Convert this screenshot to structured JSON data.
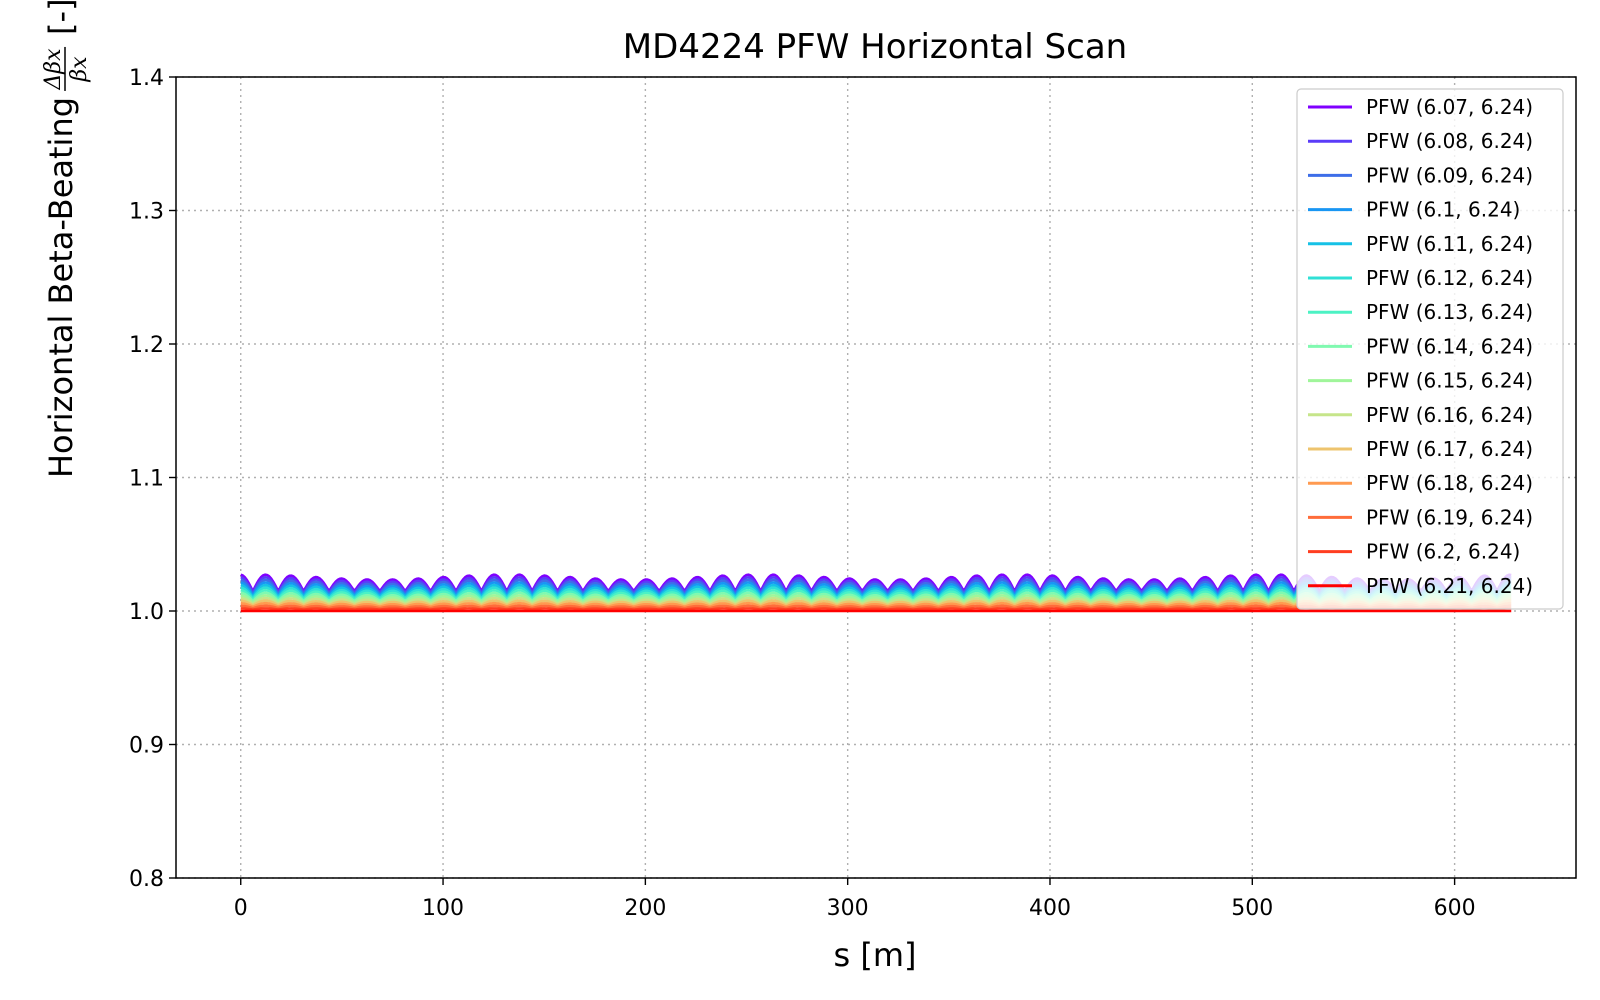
{
  "chart_data": {
    "type": "line",
    "title": "MD4224 PFW Horizontal Scan",
    "xlabel": "s [m]",
    "ylabel": "Horizontal Beta-Beating",
    "ylabel_fraction": {
      "numerator": "Δβx",
      "denominator": "βx"
    },
    "ylabel_unit": "[-]",
    "xlim": [
      -32,
      660
    ],
    "ylim": [
      0.8,
      1.4
    ],
    "xticks": [
      0,
      100,
      200,
      300,
      400,
      500,
      600
    ],
    "xtick_labels": [
      "0",
      "100",
      "200",
      "300",
      "400",
      "500",
      "600"
    ],
    "yticks": [
      0.8,
      0.9,
      1.0,
      1.1,
      1.2,
      1.3,
      1.4
    ],
    "ytick_labels": [
      "0.8",
      "0.9",
      "1.0",
      "1.1",
      "1.2",
      "1.3",
      "1.4"
    ],
    "grid": true,
    "legend_position": "top-right",
    "x_range": [
      0,
      628
    ],
    "series": [
      {
        "name": "PFW (6.07, 6.24)",
        "color": "#8000ff",
        "amplitude": 0.014,
        "offset": 0.021
      },
      {
        "name": "PFW (6.08, 6.24)",
        "color": "#5a3cf8",
        "amplitude": 0.013,
        "offset": 0.0195
      },
      {
        "name": "PFW (6.09, 6.24)",
        "color": "#3e6ee8",
        "amplitude": 0.012,
        "offset": 0.018
      },
      {
        "name": "PFW (6.1, 6.24)",
        "color": "#1996f3",
        "amplitude": 0.011,
        "offset": 0.0165
      },
      {
        "name": "PFW (6.11, 6.24)",
        "color": "#16c1e6",
        "amplitude": 0.01,
        "offset": 0.015
      },
      {
        "name": "PFW (6.12, 6.24)",
        "color": "#30e0d6",
        "amplitude": 0.009,
        "offset": 0.0135
      },
      {
        "name": "PFW (6.13, 6.24)",
        "color": "#4cf2c4",
        "amplitude": 0.008,
        "offset": 0.012
      },
      {
        "name": "PFW (6.14, 6.24)",
        "color": "#80f9b0",
        "amplitude": 0.007,
        "offset": 0.0105
      },
      {
        "name": "PFW (6.15, 6.24)",
        "color": "#a0f59a",
        "amplitude": 0.006,
        "offset": 0.009
      },
      {
        "name": "PFW (6.16, 6.24)",
        "color": "#c6e58a",
        "amplitude": 0.005,
        "offset": 0.0075
      },
      {
        "name": "PFW (6.17, 6.24)",
        "color": "#eec46e",
        "amplitude": 0.004,
        "offset": 0.006
      },
      {
        "name": "PFW (6.18, 6.24)",
        "color": "#ff9a50",
        "amplitude": 0.003,
        "offset": 0.0045
      },
      {
        "name": "PFW (6.19, 6.24)",
        "color": "#ff6c3a",
        "amplitude": 0.002,
        "offset": 0.003
      },
      {
        "name": "PFW (6.2, 6.24)",
        "color": "#ff3e20",
        "amplitude": 0.001,
        "offset": 0.0015
      },
      {
        "name": "PFW (6.21, 6.24)",
        "color": "#ff0000",
        "amplitude": 0.0,
        "offset": 0.0
      }
    ]
  }
}
